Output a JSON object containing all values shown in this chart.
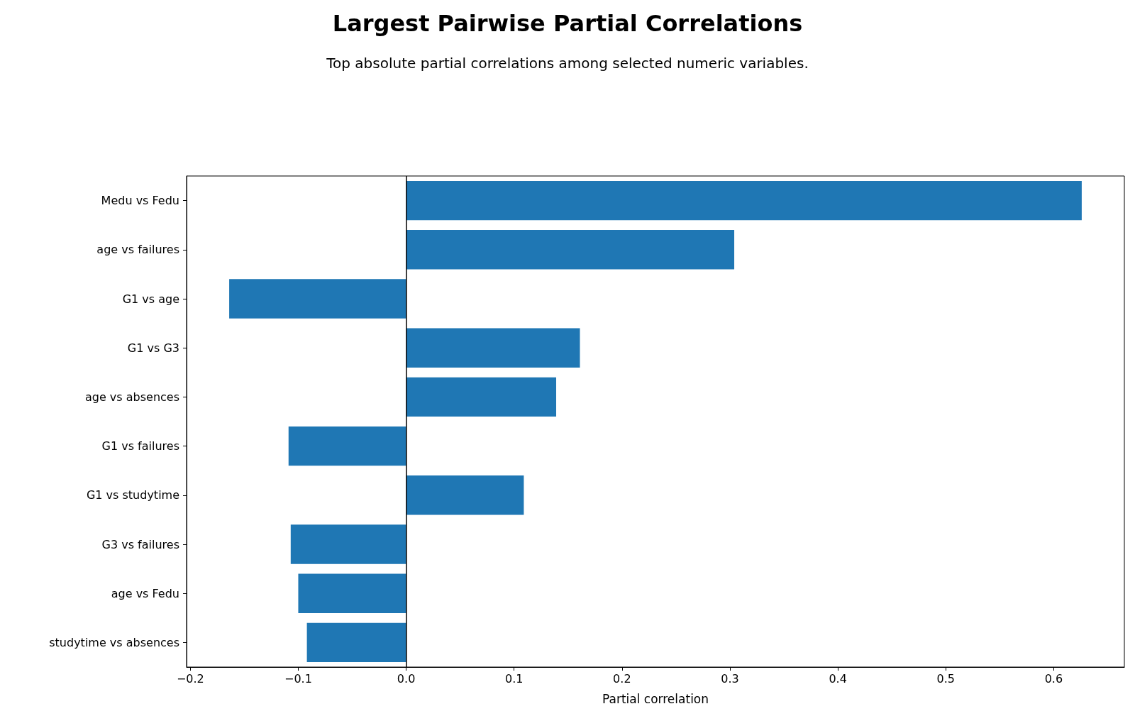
{
  "chart_data": {
    "type": "bar",
    "orientation": "horizontal",
    "title": "Largest Pairwise Partial Correlations",
    "subtitle": "Top absolute partial correlations among selected numeric variables.",
    "xlabel": "Partial correlation",
    "categories": [
      "Medu vs Fedu",
      "age vs failures",
      "G1 vs age",
      "G1 vs G3",
      "age vs absences",
      "G1 vs failures",
      "G1 vs studytime",
      "G3 vs failures",
      "age vs Fedu",
      "studytime vs absences"
    ],
    "values": [
      0.626,
      0.304,
      -0.164,
      0.161,
      0.139,
      -0.109,
      0.109,
      -0.107,
      -0.1,
      -0.092
    ],
    "color": "#1f77b4",
    "xlim": [
      -0.2035,
      0.6655
    ],
    "xticks": [
      {
        "value": -0.2,
        "label": "−0.2"
      },
      {
        "value": -0.1,
        "label": "−0.1"
      },
      {
        "value": 0,
        "label": "0.0"
      },
      {
        "value": 0.1,
        "label": "0.1"
      },
      {
        "value": 0.2,
        "label": "0.2"
      },
      {
        "value": 0.3,
        "label": "0.3"
      },
      {
        "value": 0.4,
        "label": "0.4"
      },
      {
        "value": 0.5,
        "label": "0.5"
      },
      {
        "value": 0.6,
        "label": "0.6"
      }
    ],
    "ref_lines": [
      {
        "axis": "x",
        "value": 0,
        "color": "#000000"
      }
    ],
    "grid": false
  }
}
